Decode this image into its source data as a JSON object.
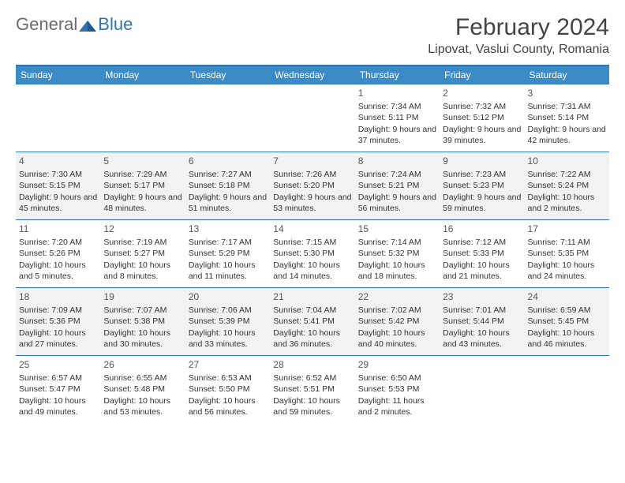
{
  "logo": {
    "general": "General",
    "blue": "Blue"
  },
  "title": "February 2024",
  "location": "Lipovat, Vaslui County, Romania",
  "colors": {
    "header_bg": "#3b8bc7",
    "border": "#2e74b5",
    "shade": "#f2f2f2",
    "text": "#333333",
    "logo_gray": "#6b6b6b",
    "logo_blue": "#2e74b5"
  },
  "weekdays": [
    "Sunday",
    "Monday",
    "Tuesday",
    "Wednesday",
    "Thursday",
    "Friday",
    "Saturday"
  ],
  "weeks": [
    {
      "shaded": false,
      "days": [
        null,
        null,
        null,
        null,
        {
          "n": "1",
          "sr": "7:34 AM",
          "ss": "5:11 PM",
          "dl": "9 hours and 37 minutes."
        },
        {
          "n": "2",
          "sr": "7:32 AM",
          "ss": "5:12 PM",
          "dl": "9 hours and 39 minutes."
        },
        {
          "n": "3",
          "sr": "7:31 AM",
          "ss": "5:14 PM",
          "dl": "9 hours and 42 minutes."
        }
      ]
    },
    {
      "shaded": true,
      "days": [
        {
          "n": "4",
          "sr": "7:30 AM",
          "ss": "5:15 PM",
          "dl": "9 hours and 45 minutes."
        },
        {
          "n": "5",
          "sr": "7:29 AM",
          "ss": "5:17 PM",
          "dl": "9 hours and 48 minutes."
        },
        {
          "n": "6",
          "sr": "7:27 AM",
          "ss": "5:18 PM",
          "dl": "9 hours and 51 minutes."
        },
        {
          "n": "7",
          "sr": "7:26 AM",
          "ss": "5:20 PM",
          "dl": "9 hours and 53 minutes."
        },
        {
          "n": "8",
          "sr": "7:24 AM",
          "ss": "5:21 PM",
          "dl": "9 hours and 56 minutes."
        },
        {
          "n": "9",
          "sr": "7:23 AM",
          "ss": "5:23 PM",
          "dl": "9 hours and 59 minutes."
        },
        {
          "n": "10",
          "sr": "7:22 AM",
          "ss": "5:24 PM",
          "dl": "10 hours and 2 minutes."
        }
      ]
    },
    {
      "shaded": false,
      "days": [
        {
          "n": "11",
          "sr": "7:20 AM",
          "ss": "5:26 PM",
          "dl": "10 hours and 5 minutes."
        },
        {
          "n": "12",
          "sr": "7:19 AM",
          "ss": "5:27 PM",
          "dl": "10 hours and 8 minutes."
        },
        {
          "n": "13",
          "sr": "7:17 AM",
          "ss": "5:29 PM",
          "dl": "10 hours and 11 minutes."
        },
        {
          "n": "14",
          "sr": "7:15 AM",
          "ss": "5:30 PM",
          "dl": "10 hours and 14 minutes."
        },
        {
          "n": "15",
          "sr": "7:14 AM",
          "ss": "5:32 PM",
          "dl": "10 hours and 18 minutes."
        },
        {
          "n": "16",
          "sr": "7:12 AM",
          "ss": "5:33 PM",
          "dl": "10 hours and 21 minutes."
        },
        {
          "n": "17",
          "sr": "7:11 AM",
          "ss": "5:35 PM",
          "dl": "10 hours and 24 minutes."
        }
      ]
    },
    {
      "shaded": true,
      "days": [
        {
          "n": "18",
          "sr": "7:09 AM",
          "ss": "5:36 PM",
          "dl": "10 hours and 27 minutes."
        },
        {
          "n": "19",
          "sr": "7:07 AM",
          "ss": "5:38 PM",
          "dl": "10 hours and 30 minutes."
        },
        {
          "n": "20",
          "sr": "7:06 AM",
          "ss": "5:39 PM",
          "dl": "10 hours and 33 minutes."
        },
        {
          "n": "21",
          "sr": "7:04 AM",
          "ss": "5:41 PM",
          "dl": "10 hours and 36 minutes."
        },
        {
          "n": "22",
          "sr": "7:02 AM",
          "ss": "5:42 PM",
          "dl": "10 hours and 40 minutes."
        },
        {
          "n": "23",
          "sr": "7:01 AM",
          "ss": "5:44 PM",
          "dl": "10 hours and 43 minutes."
        },
        {
          "n": "24",
          "sr": "6:59 AM",
          "ss": "5:45 PM",
          "dl": "10 hours and 46 minutes."
        }
      ]
    },
    {
      "shaded": false,
      "days": [
        {
          "n": "25",
          "sr": "6:57 AM",
          "ss": "5:47 PM",
          "dl": "10 hours and 49 minutes."
        },
        {
          "n": "26",
          "sr": "6:55 AM",
          "ss": "5:48 PM",
          "dl": "10 hours and 53 minutes."
        },
        {
          "n": "27",
          "sr": "6:53 AM",
          "ss": "5:50 PM",
          "dl": "10 hours and 56 minutes."
        },
        {
          "n": "28",
          "sr": "6:52 AM",
          "ss": "5:51 PM",
          "dl": "10 hours and 59 minutes."
        },
        {
          "n": "29",
          "sr": "6:50 AM",
          "ss": "5:53 PM",
          "dl": "11 hours and 2 minutes."
        },
        null,
        null
      ]
    }
  ],
  "labels": {
    "sunrise": "Sunrise: ",
    "sunset": "Sunset: ",
    "daylight": "Daylight: "
  }
}
